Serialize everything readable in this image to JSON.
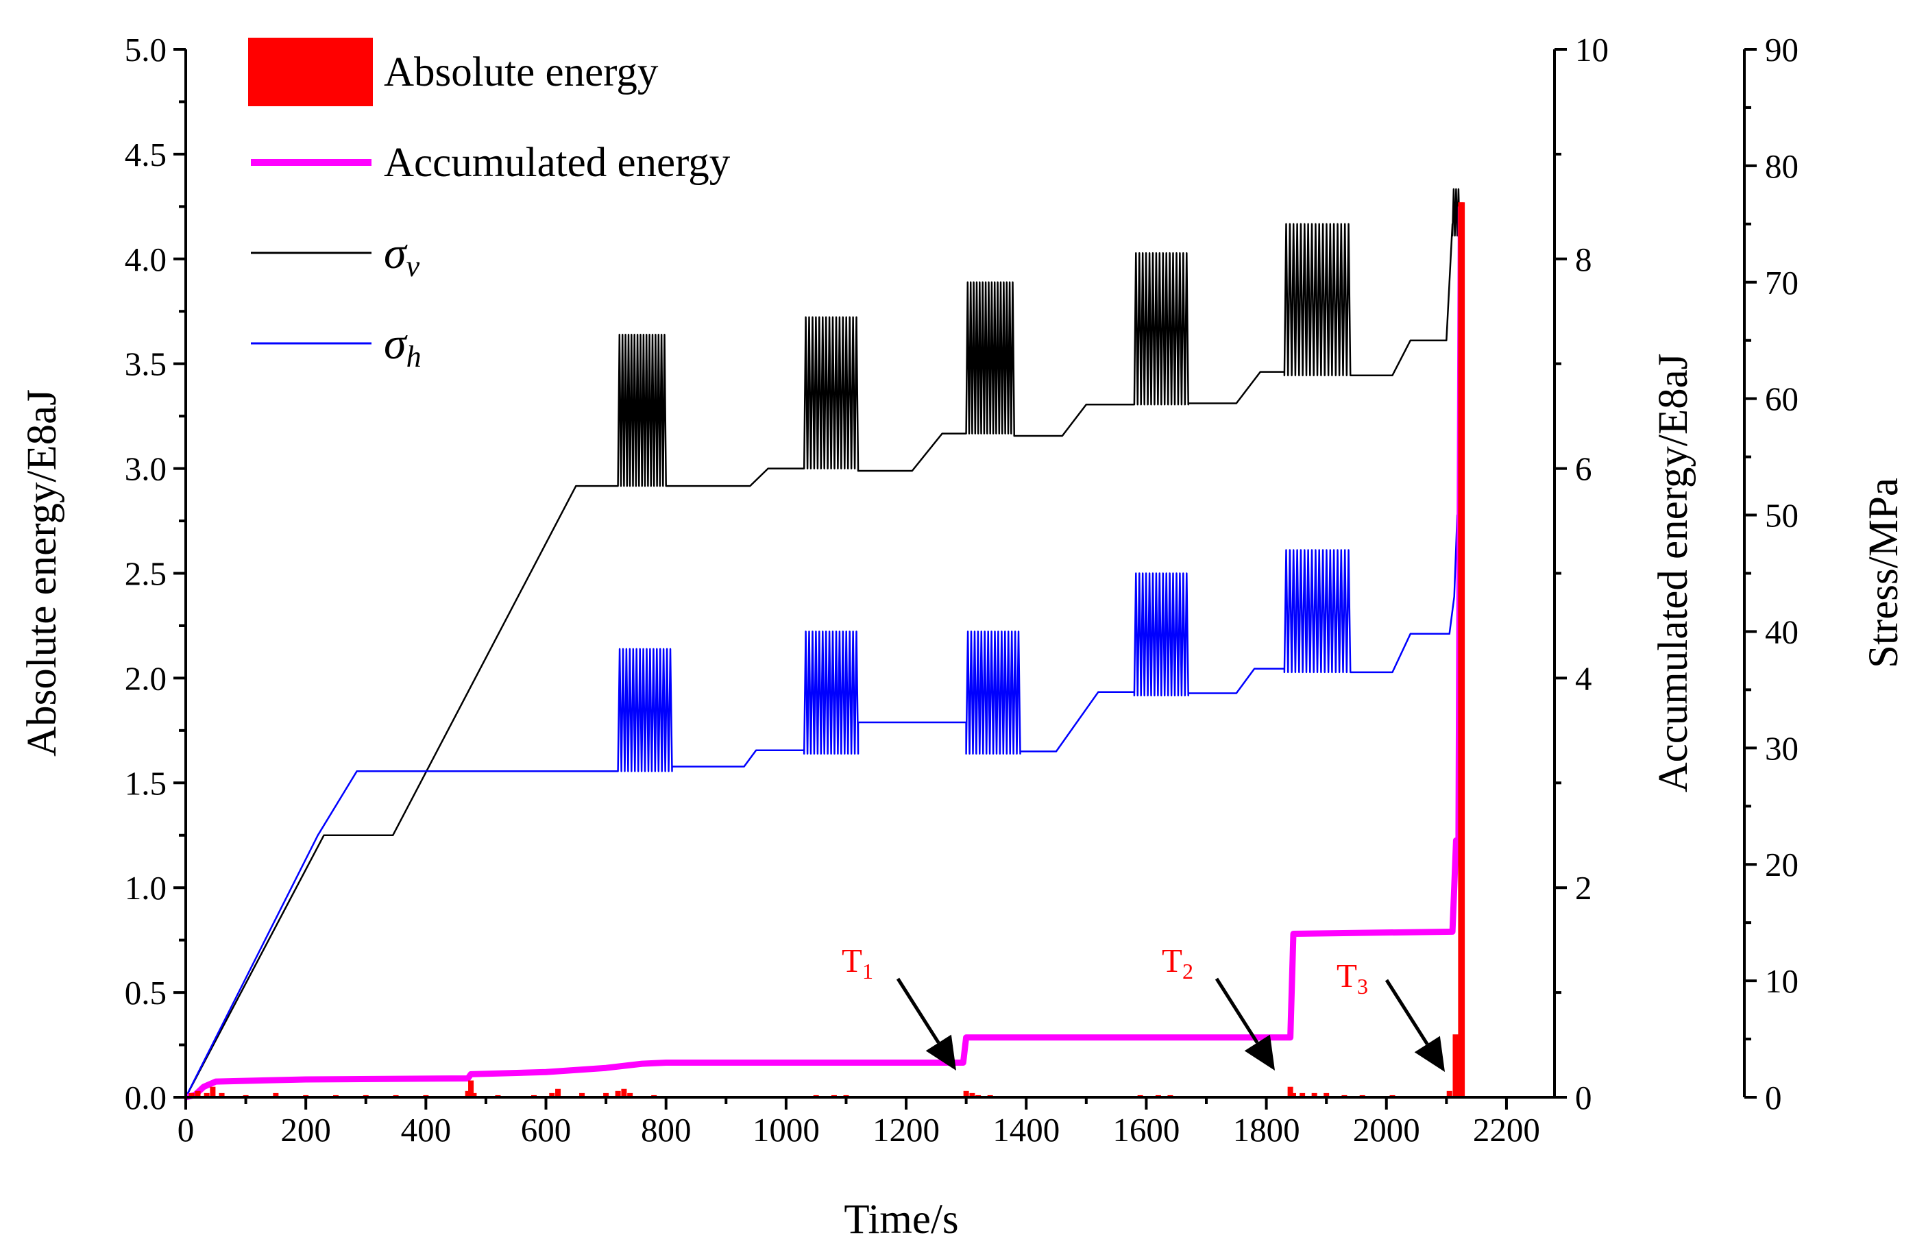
{
  "chart_data": {
    "type": "line",
    "xlabel": "Time/s",
    "ylabel_left": "Absolute energy/E8aJ",
    "ylabel_right1": "Accumulated energy/E8aJ",
    "ylabel_right2": "Stress/MPa",
    "x_ticks": [
      "0",
      "200",
      "400",
      "600",
      "800",
      "1000",
      "1200",
      "1400",
      "1600",
      "1800",
      "2000",
      "2200"
    ],
    "y_left_ticks": [
      "0.0",
      "0.5",
      "1.0",
      "1.5",
      "2.0",
      "2.5",
      "3.0",
      "3.5",
      "4.0",
      "4.5",
      "5.0"
    ],
    "y_right1_ticks": [
      "0",
      "2",
      "4",
      "6",
      "8",
      "10"
    ],
    "y_right2_ticks": [
      "0",
      "10",
      "20",
      "30",
      "40",
      "50",
      "60",
      "70",
      "80",
      "90"
    ],
    "xlim": [
      0,
      2280
    ],
    "ylim_left": [
      0,
      5
    ],
    "ylim_right1": [
      0,
      10
    ],
    "ylim_right2": [
      0,
      90
    ],
    "legend": {
      "position": "top-left",
      "entries": [
        {
          "label": "Absolute energy",
          "style": "bar",
          "color": "#ff0000"
        },
        {
          "label": "Accumulated energy",
          "style": "line",
          "color": "#ff00ff"
        },
        {
          "label": "σ",
          "sub": "v",
          "style": "line",
          "color": "#000000"
        },
        {
          "label": "σ",
          "sub": "h",
          "style": "line",
          "color": "#0000ff"
        }
      ]
    },
    "colors": {
      "absolute_energy": "#ff0000",
      "accumulated_energy": "#ff00ff",
      "sigma_v": "#000000",
      "sigma_h": "#0000ff",
      "annotation": "#ff0000"
    },
    "series": [
      {
        "name": "Absolute energy",
        "axis": "left",
        "type": "bar",
        "points": [
          [
            10,
            0.02
          ],
          [
            20,
            0.03
          ],
          [
            35,
            0.02
          ],
          [
            45,
            0.05
          ],
          [
            60,
            0.02
          ],
          [
            100,
            0.01
          ],
          [
            150,
            0.02
          ],
          [
            200,
            0.01
          ],
          [
            250,
            0.01
          ],
          [
            300,
            0.01
          ],
          [
            350,
            0.01
          ],
          [
            400,
            0.01
          ],
          [
            470,
            0.03
          ],
          [
            475,
            0.08
          ],
          [
            480,
            0.02
          ],
          [
            520,
            0.01
          ],
          [
            580,
            0.01
          ],
          [
            610,
            0.02
          ],
          [
            620,
            0.04
          ],
          [
            660,
            0.02
          ],
          [
            700,
            0.02
          ],
          [
            720,
            0.03
          ],
          [
            730,
            0.04
          ],
          [
            740,
            0.02
          ],
          [
            780,
            0.01
          ],
          [
            1050,
            0.01
          ],
          [
            1080,
            0.01
          ],
          [
            1100,
            0.01
          ],
          [
            1300,
            0.03
          ],
          [
            1310,
            0.02
          ],
          [
            1320,
            0.01
          ],
          [
            1340,
            0.01
          ],
          [
            1590,
            0.01
          ],
          [
            1620,
            0.01
          ],
          [
            1640,
            0.01
          ],
          [
            1840,
            0.05
          ],
          [
            1845,
            0.02
          ],
          [
            1860,
            0.02
          ],
          [
            1880,
            0.02
          ],
          [
            1900,
            0.02
          ],
          [
            1930,
            0.01
          ],
          [
            1960,
            0.01
          ],
          [
            2010,
            0.01
          ],
          [
            2105,
            0.03
          ],
          [
            2115,
            0.3
          ],
          [
            2120,
            0.08
          ],
          [
            2124,
            4.27
          ],
          [
            2126,
            4.27
          ]
        ]
      },
      {
        "name": "Accumulated energy",
        "axis": "right1",
        "points": [
          [
            0,
            0
          ],
          [
            15,
            0.02
          ],
          [
            30,
            0.1
          ],
          [
            50,
            0.15
          ],
          [
            200,
            0.17
          ],
          [
            470,
            0.18
          ],
          [
            475,
            0.22
          ],
          [
            600,
            0.24
          ],
          [
            700,
            0.28
          ],
          [
            760,
            0.32
          ],
          [
            800,
            0.33
          ],
          [
            1295,
            0.33
          ],
          [
            1300,
            0.57
          ],
          [
            1840,
            0.57
          ],
          [
            1845,
            1.56
          ],
          [
            2110,
            1.58
          ],
          [
            2113,
            2.0
          ],
          [
            2116,
            2.45
          ],
          [
            2120,
            2.46
          ],
          [
            2124,
            8.5
          ]
        ]
      },
      {
        "name": "σv",
        "axis": "right2",
        "pattern": [
          {
            "t0": 0,
            "t1": 230,
            "v0": 0,
            "v1": 22.5
          },
          {
            "t0": 230,
            "t1": 345,
            "v0": 22.5,
            "v1": 22.5
          },
          {
            "t0": 345,
            "t1": 650,
            "v0": 22.5,
            "v1": 52.5
          },
          {
            "t0": 650,
            "t1": 720,
            "v0": 52.5,
            "v1": 52.5
          },
          {
            "osc": true,
            "t0": 720,
            "t1": 800,
            "lo": 52.5,
            "hi": 65.5,
            "n": 16
          },
          {
            "t0": 800,
            "t1": 940,
            "v0": 52.5,
            "v1": 52.5
          },
          {
            "t0": 940,
            "t1": 970,
            "v0": 52.5,
            "v1": 54
          },
          {
            "t0": 970,
            "t1": 1030,
            "v0": 54,
            "v1": 54
          },
          {
            "osc": true,
            "t0": 1030,
            "t1": 1120,
            "lo": 54,
            "hi": 67,
            "n": 16
          },
          {
            "t0": 1120,
            "t1": 1210,
            "v0": 53.8,
            "v1": 53.8
          },
          {
            "t0": 1210,
            "t1": 1260,
            "v0": 53.8,
            "v1": 57
          },
          {
            "t0": 1260,
            "t1": 1300,
            "v0": 57,
            "v1": 57
          },
          {
            "osc": true,
            "t0": 1300,
            "t1": 1380,
            "lo": 57,
            "hi": 70,
            "n": 16
          },
          {
            "t0": 1380,
            "t1": 1460,
            "v0": 56.8,
            "v1": 56.8
          },
          {
            "t0": 1460,
            "t1": 1500,
            "v0": 56.8,
            "v1": 59.5
          },
          {
            "t0": 1500,
            "t1": 1580,
            "v0": 59.5,
            "v1": 59.5
          },
          {
            "osc": true,
            "t0": 1580,
            "t1": 1670,
            "lo": 59.5,
            "hi": 72.5,
            "n": 16
          },
          {
            "t0": 1670,
            "t1": 1750,
            "v0": 59.6,
            "v1": 59.6
          },
          {
            "t0": 1750,
            "t1": 1790,
            "v0": 59.6,
            "v1": 62.3
          },
          {
            "t0": 1790,
            "t1": 1830,
            "v0": 62.3,
            "v1": 62.3
          },
          {
            "osc": true,
            "t0": 1830,
            "t1": 1940,
            "lo": 62,
            "hi": 75,
            "n": 18
          },
          {
            "t0": 1940,
            "t1": 2010,
            "v0": 62,
            "v1": 62
          },
          {
            "t0": 2010,
            "t1": 2040,
            "v0": 62,
            "v1": 65
          },
          {
            "t0": 2040,
            "t1": 2100,
            "v0": 65,
            "v1": 65
          },
          {
            "t0": 2100,
            "t1": 2110,
            "v0": 65,
            "v1": 75
          },
          {
            "osc": true,
            "t0": 2110,
            "t1": 2122,
            "lo": 74,
            "hi": 78,
            "n": 3
          },
          {
            "t0": 2122,
            "t1": 2126,
            "v0": 76,
            "v1": 0
          }
        ]
      },
      {
        "name": "σh",
        "axis": "right2",
        "pattern": [
          {
            "t0": 0,
            "t1": 220,
            "v0": 0,
            "v1": 22.5
          },
          {
            "t0": 220,
            "t1": 285,
            "v0": 22.5,
            "v1": 28
          },
          {
            "t0": 285,
            "t1": 720,
            "v0": 28,
            "v1": 28
          },
          {
            "osc": true,
            "t0": 720,
            "t1": 810,
            "lo": 28,
            "hi": 38.5,
            "n": 16
          },
          {
            "t0": 810,
            "t1": 930,
            "v0": 28.4,
            "v1": 28.4
          },
          {
            "t0": 930,
            "t1": 950,
            "v0": 28.4,
            "v1": 29.8
          },
          {
            "t0": 950,
            "t1": 1030,
            "v0": 29.8,
            "v1": 29.8
          },
          {
            "osc": true,
            "t0": 1030,
            "t1": 1120,
            "lo": 29.5,
            "hi": 40,
            "n": 16
          },
          {
            "t0": 1120,
            "t1": 1300,
            "v0": 32.2,
            "v1": 32.2
          },
          {
            "osc": true,
            "t0": 1300,
            "t1": 1390,
            "lo": 29.5,
            "hi": 40,
            "n": 16
          },
          {
            "t0": 1390,
            "t1": 1450,
            "v0": 29.7,
            "v1": 29.7
          },
          {
            "t0": 1450,
            "t1": 1520,
            "v0": 29.7,
            "v1": 34.8
          },
          {
            "t0": 1520,
            "t1": 1580,
            "v0": 34.8,
            "v1": 34.8
          },
          {
            "osc": true,
            "t0": 1580,
            "t1": 1670,
            "lo": 34.5,
            "hi": 45,
            "n": 16
          },
          {
            "t0": 1670,
            "t1": 1750,
            "v0": 34.7,
            "v1": 34.7
          },
          {
            "t0": 1750,
            "t1": 1780,
            "v0": 34.7,
            "v1": 36.8
          },
          {
            "t0": 1780,
            "t1": 1830,
            "v0": 36.8,
            "v1": 36.8
          },
          {
            "osc": true,
            "t0": 1830,
            "t1": 1940,
            "lo": 36.5,
            "hi": 47,
            "n": 18
          },
          {
            "t0": 1940,
            "t1": 2010,
            "v0": 36.5,
            "v1": 36.5
          },
          {
            "t0": 2010,
            "t1": 2040,
            "v0": 36.5,
            "v1": 39.8
          },
          {
            "t0": 2040,
            "t1": 2105,
            "v0": 39.8,
            "v1": 39.8
          },
          {
            "t0": 2105,
            "t1": 2113,
            "v0": 39.8,
            "v1": 43
          },
          {
            "t0": 2113,
            "t1": 2118,
            "v0": 43,
            "v1": 50
          },
          {
            "t0": 2118,
            "t1": 2122,
            "v0": 50,
            "v1": 43
          },
          {
            "t0": 2122,
            "t1": 2126,
            "v0": 43,
            "v1": 0
          }
        ]
      }
    ],
    "annotations": [
      {
        "text": "T",
        "sub": "1",
        "x": 1300
      },
      {
        "text": "T",
        "sub": "2",
        "x": 1840
      },
      {
        "text": "T",
        "sub": "3",
        "x": 2118
      }
    ]
  }
}
